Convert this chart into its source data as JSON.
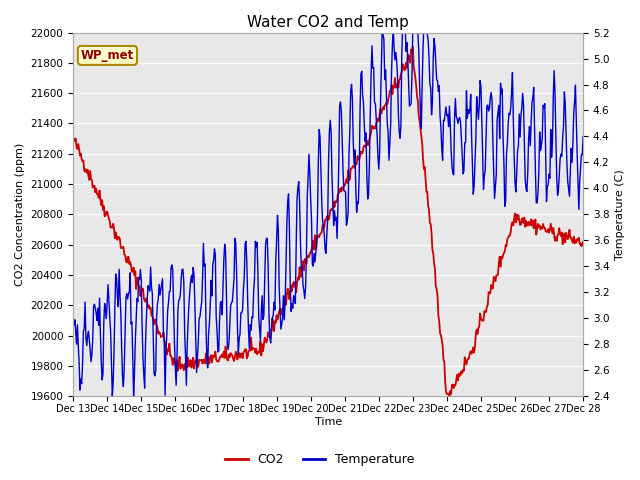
{
  "title": "Water CO2 and Temp",
  "xlabel": "Time",
  "ylabel_left": "CO2 Concentration (ppm)",
  "ylabel_right": "Temperature (C)",
  "annotation": "WP_met",
  "co2_ylim": [
    19600,
    22000
  ],
  "temp_ylim": [
    2.4,
    5.2
  ],
  "co2_yticks": [
    19600,
    19800,
    20000,
    20200,
    20400,
    20600,
    20800,
    21000,
    21200,
    21400,
    21600,
    21800,
    22000
  ],
  "temp_yticks": [
    2.4,
    2.6,
    2.8,
    3.0,
    3.2,
    3.4,
    3.6,
    3.8,
    4.0,
    4.2,
    4.4,
    4.6,
    4.8,
    5.0,
    5.2
  ],
  "xtick_labels": [
    "Dec 13",
    "Dec 14",
    "Dec 15",
    "Dec 16",
    "Dec 17",
    "Dec 18",
    "Dec 19",
    "Dec 20",
    "Dec 21",
    "Dec 22",
    "Dec 23",
    "Dec 24",
    "Dec 25",
    "Dec 26",
    "Dec 27",
    "Dec 28"
  ],
  "co2_color": "#cc0000",
  "temp_color": "#0000cc",
  "fig_bg_color": "#ffffff",
  "plot_bg_color": "#e8e8e8",
  "grid_color": "#ffffff",
  "legend_co2": "CO2",
  "legend_temp": "Temperature",
  "title_fontsize": 11,
  "label_fontsize": 8,
  "tick_fontsize": 7.5
}
